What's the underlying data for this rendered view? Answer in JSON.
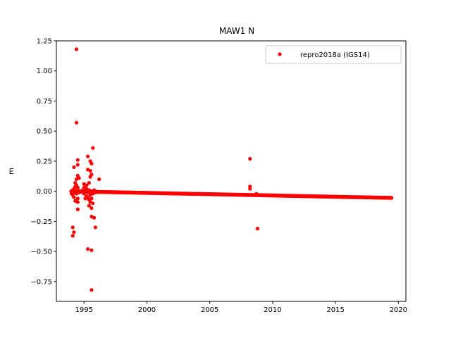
{
  "chart_data": {
    "type": "scatter",
    "title": "MAW1 N",
    "xlabel": "",
    "ylabel": "m",
    "xlim": [
      1992.8,
      2020.6
    ],
    "ylim": [
      -0.915,
      1.25
    ],
    "xticks": [
      1995,
      2000,
      2005,
      2010,
      2015,
      2020
    ],
    "yticks": [
      -0.75,
      -0.5,
      -0.25,
      0.0,
      0.25,
      0.5,
      0.75,
      1.0,
      1.25
    ],
    "ytick_labels": [
      "−0.75",
      "−0.50",
      "−0.25",
      "0.00",
      "0.25",
      "0.50",
      "0.75",
      "1.00",
      "1.25"
    ],
    "grid": false,
    "legend_position": "top-right",
    "series": [
      {
        "name": "repro2018a (IGS14)",
        "color": "#ff0000",
        "marker": "circle",
        "trend": {
          "x_start": 1996.0,
          "x_end": 2019.45,
          "y_start": -0.005,
          "y_end": -0.055
        },
        "points": [
          {
            "x": 1994.4,
            "y": 1.18
          },
          {
            "x": 1994.4,
            "y": 0.57
          },
          {
            "x": 1994.5,
            "y": 0.26
          },
          {
            "x": 1994.5,
            "y": 0.22
          },
          {
            "x": 1994.2,
            "y": 0.2
          },
          {
            "x": 1994.5,
            "y": 0.13
          },
          {
            "x": 1994.6,
            "y": 0.11
          },
          {
            "x": 1994.4,
            "y": 0.1
          },
          {
            "x": 1994.3,
            "y": 0.07
          },
          {
            "x": 1994.4,
            "y": 0.05
          },
          {
            "x": 1994.5,
            "y": 0.03
          },
          {
            "x": 1994.1,
            "y": 0.01
          },
          {
            "x": 1994.2,
            "y": 0.02
          },
          {
            "x": 1994.3,
            "y": -0.01
          },
          {
            "x": 1994.0,
            "y": -0.02
          },
          {
            "x": 1994.1,
            "y": -0.03
          },
          {
            "x": 1994.2,
            "y": 0.0
          },
          {
            "x": 1994.3,
            "y": 0.04
          },
          {
            "x": 1994.4,
            "y": -0.02
          },
          {
            "x": 1994.5,
            "y": 0.0
          },
          {
            "x": 1994.6,
            "y": -0.01
          },
          {
            "x": 1994.5,
            "y": -0.06
          },
          {
            "x": 1994.5,
            "y": -0.09
          },
          {
            "x": 1994.5,
            "y": -0.15
          },
          {
            "x": 1994.3,
            "y": -0.08
          },
          {
            "x": 1994.2,
            "y": -0.05
          },
          {
            "x": 1994.1,
            "y": -0.3
          },
          {
            "x": 1994.2,
            "y": -0.34
          },
          {
            "x": 1994.1,
            "y": -0.37
          },
          {
            "x": 1995.3,
            "y": 0.29
          },
          {
            "x": 1995.5,
            "y": 0.25
          },
          {
            "x": 1995.6,
            "y": 0.23
          },
          {
            "x": 1995.7,
            "y": 0.36
          },
          {
            "x": 1995.3,
            "y": 0.18
          },
          {
            "x": 1995.5,
            "y": 0.17
          },
          {
            "x": 1995.5,
            "y": 0.12
          },
          {
            "x": 1995.6,
            "y": 0.14
          },
          {
            "x": 1995.4,
            "y": 0.07
          },
          {
            "x": 1995.2,
            "y": 0.05
          },
          {
            "x": 1995.0,
            "y": 0.03
          },
          {
            "x": 1994.9,
            "y": 0.01
          },
          {
            "x": 1995.0,
            "y": -0.02
          },
          {
            "x": 1995.1,
            "y": 0.0
          },
          {
            "x": 1995.2,
            "y": 0.02
          },
          {
            "x": 1995.3,
            "y": -0.01
          },
          {
            "x": 1995.4,
            "y": 0.01
          },
          {
            "x": 1995.5,
            "y": -0.03
          },
          {
            "x": 1995.6,
            "y": 0.0
          },
          {
            "x": 1995.7,
            "y": -0.02
          },
          {
            "x": 1995.8,
            "y": 0.01
          },
          {
            "x": 1995.9,
            "y": -0.01
          },
          {
            "x": 1995.2,
            "y": -0.04
          },
          {
            "x": 1995.3,
            "y": -0.05
          },
          {
            "x": 1995.4,
            "y": -0.07
          },
          {
            "x": 1995.5,
            "y": -0.09
          },
          {
            "x": 1995.6,
            "y": -0.06
          },
          {
            "x": 1995.7,
            "y": -0.1
          },
          {
            "x": 1995.4,
            "y": -0.12
          },
          {
            "x": 1995.6,
            "y": -0.14
          },
          {
            "x": 1995.8,
            "y": -0.22
          },
          {
            "x": 1995.6,
            "y": -0.21
          },
          {
            "x": 1995.9,
            "y": -0.3
          },
          {
            "x": 1996.2,
            "y": 0.1
          },
          {
            "x": 1995.3,
            "y": -0.48
          },
          {
            "x": 1995.6,
            "y": -0.49
          },
          {
            "x": 1995.6,
            "y": -0.82
          },
          {
            "x": 1995.0,
            "y": 0.06
          },
          {
            "x": 1995.1,
            "y": -0.06
          },
          {
            "x": 2008.2,
            "y": 0.27
          },
          {
            "x": 2008.2,
            "y": 0.04
          },
          {
            "x": 2008.2,
            "y": 0.02
          },
          {
            "x": 2008.8,
            "y": -0.31
          },
          {
            "x": 2008.7,
            "y": -0.02
          },
          {
            "x": 2008.9,
            "y": -0.03
          }
        ]
      }
    ]
  }
}
